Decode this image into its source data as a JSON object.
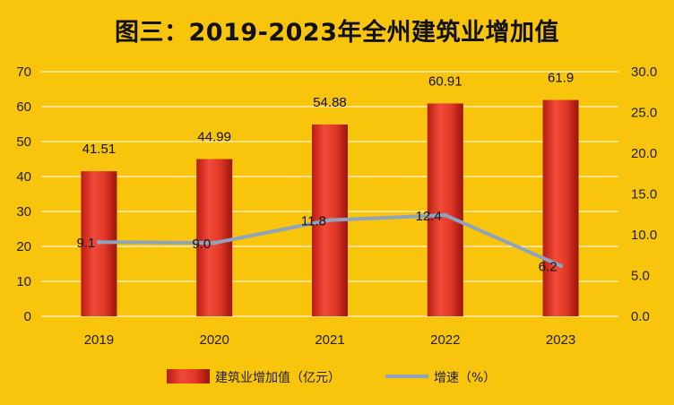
{
  "chart_data": {
    "type": "bar",
    "title": "图三：2019-2023年全州建筑业增加值",
    "categories": [
      "2019",
      "2020",
      "2021",
      "2022",
      "2023"
    ],
    "series": [
      {
        "name": "建筑业增加值（亿元）",
        "type": "bar",
        "axis": "left",
        "values": [
          41.51,
          44.99,
          54.88,
          60.91,
          61.9
        ],
        "labels": [
          "41.51",
          "44.99",
          "54.88",
          "60.91",
          "61.9"
        ],
        "color": "#e53a2a"
      },
      {
        "name": "增速（%）",
        "type": "line",
        "axis": "right",
        "values": [
          9.1,
          9.0,
          11.8,
          12.4,
          6.2
        ],
        "labels": [
          "9.1",
          "9.0",
          "11.8",
          "12.4",
          "6.2"
        ],
        "color": "#8ea4bc"
      }
    ],
    "y_left": {
      "range": [
        0,
        70
      ],
      "ticks": [
        "0",
        "10",
        "20",
        "30",
        "40",
        "50",
        "60",
        "70"
      ]
    },
    "y_right": {
      "range": [
        0,
        30
      ],
      "ticks": [
        "0.0",
        "5.0",
        "10.0",
        "15.0",
        "20.0",
        "25.0",
        "30.0"
      ]
    },
    "grid": true,
    "legend_position": "bottom",
    "background": "#f8c40c"
  }
}
